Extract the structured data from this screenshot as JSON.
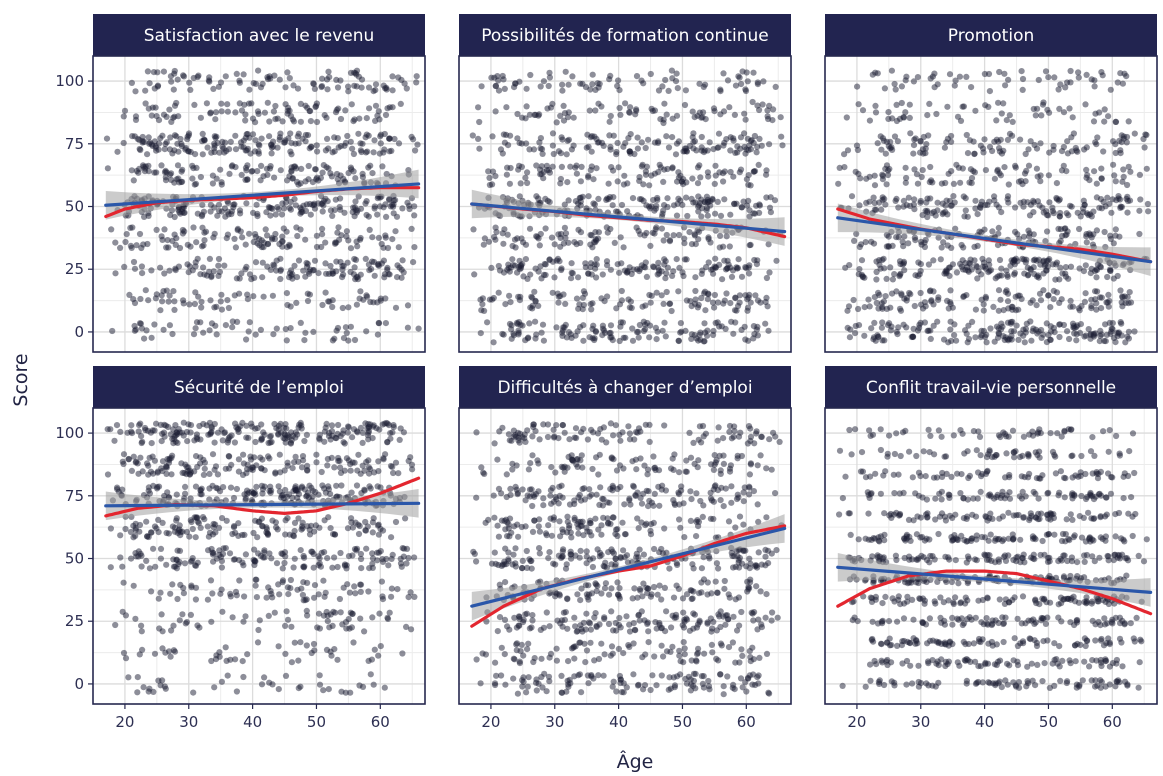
{
  "chart_data": {
    "type": "scatter",
    "facets": true,
    "xlabel": "Âge",
    "ylabel": "Score",
    "xlim": [
      15,
      67
    ],
    "ylim": [
      -8,
      110
    ],
    "x_ticks": [
      20,
      30,
      40,
      50,
      60
    ],
    "y_ticks": [
      0,
      25,
      50,
      75,
      100
    ],
    "grid": true,
    "colors": {
      "strip": "#222450",
      "points": "#1c1d33",
      "loess_line": "#e3262f",
      "linear_fit": "#2b57a9",
      "ci_band": "#a0a0a0"
    },
    "panels": [
      {
        "title": "Satisfaction avec le revenu",
        "point_levels": [
          0,
          12.5,
          25,
          37.5,
          50,
          62.5,
          75,
          87.5,
          100
        ],
        "level_weights": [
          1.0,
          1.2,
          2.2,
          2.0,
          3.2,
          2.2,
          3.0,
          1.6,
          1.6
        ],
        "linear_fit": [
          {
            "x": 17,
            "y": 50.5
          },
          {
            "x": 66,
            "y": 59
          }
        ],
        "loess_fit": [
          {
            "x": 17,
            "y": 46
          },
          {
            "x": 20,
            "y": 49
          },
          {
            "x": 25,
            "y": 51.5
          },
          {
            "x": 30,
            "y": 52.5
          },
          {
            "x": 35,
            "y": 53
          },
          {
            "x": 40,
            "y": 53.5
          },
          {
            "x": 45,
            "y": 54.5
          },
          {
            "x": 50,
            "y": 56
          },
          {
            "x": 55,
            "y": 57
          },
          {
            "x": 60,
            "y": 57.5
          },
          {
            "x": 66,
            "y": 57.5
          }
        ]
      },
      {
        "title": "Possibilités de formation continue",
        "point_levels": [
          0,
          12.5,
          25,
          37.5,
          50,
          62.5,
          75,
          87.5,
          100
        ],
        "level_weights": [
          2.4,
          2.0,
          2.6,
          2.0,
          3.0,
          2.0,
          2.4,
          1.4,
          1.4
        ],
        "linear_fit": [
          {
            "x": 17,
            "y": 51
          },
          {
            "x": 66,
            "y": 40
          }
        ],
        "loess_fit": [
          {
            "x": 17,
            "y": 51
          },
          {
            "x": 25,
            "y": 49
          },
          {
            "x": 30,
            "y": 48
          },
          {
            "x": 35,
            "y": 46.5
          },
          {
            "x": 40,
            "y": 45.5
          },
          {
            "x": 45,
            "y": 44.5
          },
          {
            "x": 50,
            "y": 44
          },
          {
            "x": 55,
            "y": 43
          },
          {
            "x": 60,
            "y": 41.5
          },
          {
            "x": 66,
            "y": 38
          }
        ]
      },
      {
        "title": "Promotion",
        "point_levels": [
          0,
          12.5,
          25,
          37.5,
          50,
          62.5,
          75,
          87.5,
          100
        ],
        "level_weights": [
          3.0,
          2.2,
          3.0,
          2.0,
          2.6,
          1.6,
          1.8,
          1.0,
          1.0
        ],
        "linear_fit": [
          {
            "x": 17,
            "y": 45.5
          },
          {
            "x": 66,
            "y": 28
          }
        ],
        "loess_fit": [
          {
            "x": 17,
            "y": 49
          },
          {
            "x": 22,
            "y": 45
          },
          {
            "x": 30,
            "y": 41
          },
          {
            "x": 40,
            "y": 37
          },
          {
            "x": 45,
            "y": 35
          },
          {
            "x": 50,
            "y": 34
          },
          {
            "x": 55,
            "y": 33
          },
          {
            "x": 60,
            "y": 31
          },
          {
            "x": 66,
            "y": 28
          }
        ]
      },
      {
        "title": "Sécurité de l’emploi",
        "point_levels": [
          0,
          12.5,
          25,
          37.5,
          50,
          62.5,
          75,
          87.5,
          100
        ],
        "level_weights": [
          0.6,
          0.7,
          1.0,
          1.2,
          2.2,
          2.2,
          3.0,
          2.4,
          3.2
        ],
        "linear_fit": [
          {
            "x": 17,
            "y": 71
          },
          {
            "x": 66,
            "y": 72
          }
        ],
        "loess_fit": [
          {
            "x": 17,
            "y": 67
          },
          {
            "x": 22,
            "y": 70
          },
          {
            "x": 28,
            "y": 71.5
          },
          {
            "x": 34,
            "y": 71
          },
          {
            "x": 40,
            "y": 69
          },
          {
            "x": 45,
            "y": 68
          },
          {
            "x": 50,
            "y": 69
          },
          {
            "x": 55,
            "y": 72
          },
          {
            "x": 60,
            "y": 76
          },
          {
            "x": 66,
            "y": 82
          }
        ]
      },
      {
        "title": "Difficultés à changer d’emploi",
        "point_levels": [
          0,
          12.5,
          25,
          37.5,
          50,
          62.5,
          75,
          87.5,
          100
        ],
        "level_weights": [
          2.0,
          1.6,
          2.4,
          2.0,
          2.8,
          2.0,
          2.2,
          1.6,
          1.8
        ],
        "linear_fit": [
          {
            "x": 17,
            "y": 31
          },
          {
            "x": 66,
            "y": 62
          }
        ],
        "loess_fit": [
          {
            "x": 17,
            "y": 23
          },
          {
            "x": 22,
            "y": 31
          },
          {
            "x": 28,
            "y": 38
          },
          {
            "x": 34,
            "y": 42
          },
          {
            "x": 40,
            "y": 45
          },
          {
            "x": 45,
            "y": 47
          },
          {
            "x": 50,
            "y": 51
          },
          {
            "x": 55,
            "y": 56
          },
          {
            "x": 60,
            "y": 60
          },
          {
            "x": 66,
            "y": 63
          }
        ]
      },
      {
        "title": "Conflit travail-vie personnelle",
        "point_levels": [
          0,
          8.33,
          16.67,
          25,
          33.33,
          41.67,
          50,
          58.33,
          66.67,
          75,
          83.33,
          91.67,
          100
        ],
        "level_weights": [
          1.4,
          1.4,
          1.6,
          1.6,
          1.8,
          2.0,
          2.0,
          1.8,
          1.6,
          1.4,
          1.2,
          1.0,
          0.9
        ],
        "linear_fit": [
          {
            "x": 17,
            "y": 46.5
          },
          {
            "x": 66,
            "y": 36.5
          }
        ],
        "loess_fit": [
          {
            "x": 17,
            "y": 31
          },
          {
            "x": 22,
            "y": 38
          },
          {
            "x": 28,
            "y": 43
          },
          {
            "x": 34,
            "y": 45
          },
          {
            "x": 40,
            "y": 45
          },
          {
            "x": 45,
            "y": 44
          },
          {
            "x": 50,
            "y": 41
          },
          {
            "x": 55,
            "y": 38
          },
          {
            "x": 60,
            "y": 34
          },
          {
            "x": 66,
            "y": 28
          }
        ]
      }
    ]
  }
}
